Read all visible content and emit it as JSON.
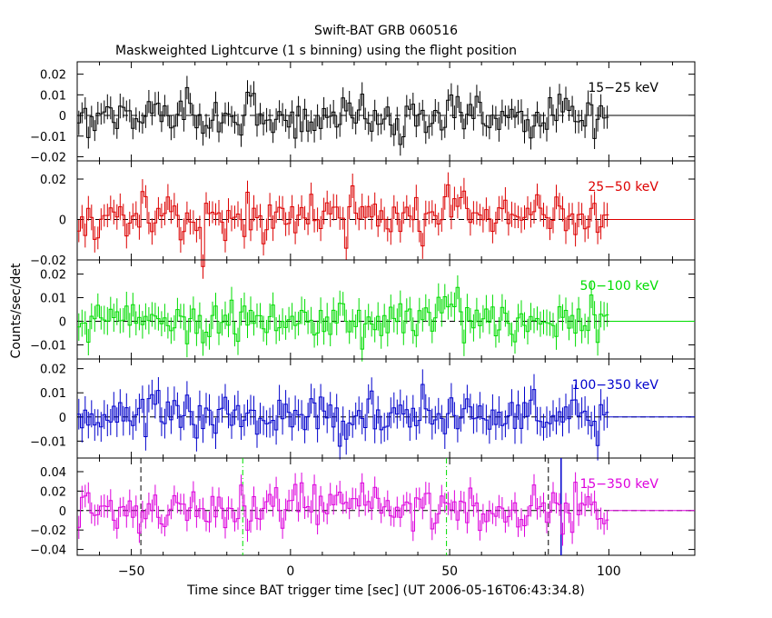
{
  "title": "Swift-BAT GRB 060516",
  "subtitle": "Maskweighted Lightcurve (1 s binning) using the flight position",
  "ylabel": "Counts/sec/det",
  "xlabel": "Time since BAT trigger time [sec] (UT 2006-05-16T06:43:34.8)",
  "chart_data": {
    "type": "line",
    "title": "Swift-BAT GRB 060516",
    "subtitle": "Maskweighted Lightcurve (1 s binning) using the flight position",
    "xlabel": "Time since BAT trigger time [sec] (UT 2006-05-16T06:43:34.8)",
    "ylabel": "Counts/sec/det",
    "xlim": [
      -67,
      127
    ],
    "x_ticks": [
      -50,
      0,
      50,
      100
    ],
    "x_tick_labels": [
      "−50",
      "0",
      "50",
      "100"
    ],
    "data_x_range": [
      -67,
      100
    ],
    "binning_sec": 1,
    "markers": [
      {
        "name": "black-dashed-1",
        "x": -47,
        "color": "#000000",
        "style": "dashed"
      },
      {
        "name": "green-dashdot-1",
        "x": -15,
        "color": "#00dd00",
        "style": "dashdot"
      },
      {
        "name": "green-dashdot-2",
        "x": 49,
        "color": "#00dd00",
        "style": "dashdot"
      },
      {
        "name": "black-dashed-2",
        "x": 81,
        "color": "#000000",
        "style": "dashed"
      },
      {
        "name": "blue-solid",
        "x": 85,
        "color": "#0000cc",
        "style": "solid"
      }
    ],
    "panels": [
      {
        "band": "15−25 keV",
        "color": "#000000",
        "ylim": [
          -0.022,
          0.026
        ],
        "ticks": [
          0.02,
          0.01,
          0,
          -0.01,
          -0.02
        ],
        "tick_labels": [
          "0.02",
          "0.01",
          "0",
          "−0.01",
          "−0.02"
        ],
        "sigma": 0.0055,
        "err": 0.0055,
        "bursts": []
      },
      {
        "band": "25−50 keV",
        "color": "#dd0000",
        "ylim": [
          -0.02,
          0.029
        ],
        "ticks": [
          0.02,
          0,
          -0.02
        ],
        "tick_labels": [
          "0.02",
          "0",
          "−0.02"
        ],
        "sigma": 0.006,
        "err": 0.006,
        "bursts": [
          {
            "t": 8,
            "w": 20,
            "a": 0.004
          },
          {
            "t": 58,
            "w": 12,
            "a": 0.005
          }
        ]
      },
      {
        "band": "50−100 keV",
        "color": "#00dd00",
        "ylim": [
          -0.016,
          0.026
        ],
        "ticks": [
          0.02,
          0.01,
          0,
          -0.01
        ],
        "tick_labels": [
          "0.02",
          "0.01",
          "0",
          "−0.01"
        ],
        "sigma": 0.0045,
        "err": 0.0055,
        "bursts": [
          {
            "t": 50,
            "w": 6,
            "a": 0.008
          }
        ]
      },
      {
        "band": "100−350 keV",
        "color": "#0000cc",
        "ylim": [
          -0.017,
          0.024
        ],
        "ticks": [
          0.02,
          0.01,
          0,
          -0.01
        ],
        "tick_labels": [
          "0.02",
          "0.01",
          "0",
          "−0.01"
        ],
        "sigma": 0.005,
        "err": 0.006,
        "bursts": [
          {
            "t": -40,
            "w": 10,
            "a": 0.004
          }
        ]
      },
      {
        "band": "15−350 keV",
        "color": "#dd00dd",
        "ylim": [
          -0.046,
          0.054
        ],
        "ticks": [
          0.04,
          0.02,
          0,
          -0.02,
          -0.04
        ],
        "tick_labels": [
          "0.04",
          "0.02",
          "0",
          "−0.02",
          "−0.04"
        ],
        "sigma": 0.011,
        "err": 0.011,
        "bursts": [
          {
            "t": 8,
            "w": 20,
            "a": 0.008
          },
          {
            "t": 50,
            "w": 8,
            "a": 0.01
          }
        ]
      }
    ]
  }
}
